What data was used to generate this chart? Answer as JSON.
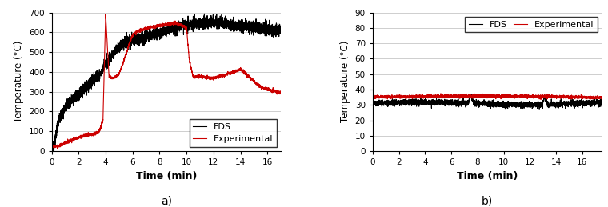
{
  "panel_a": {
    "xlabel": "Time (min)",
    "ylabel": "Temperature (°C)",
    "xlim": [
      0,
      17
    ],
    "ylim": [
      0,
      700
    ],
    "yticks": [
      0,
      100,
      200,
      300,
      400,
      500,
      600,
      700
    ],
    "xticks": [
      0,
      2,
      4,
      6,
      8,
      10,
      12,
      14,
      16
    ],
    "label": "a)",
    "exp_color": "#cc0000",
    "fds_color": "#000000",
    "exp_label": "Experimental",
    "fds_label": "FDS"
  },
  "panel_b": {
    "xlabel": "Time (min)",
    "ylabel": "Temperature (°C)",
    "xlim": [
      0,
      17.5
    ],
    "ylim": [
      0,
      90
    ],
    "yticks": [
      0,
      10,
      20,
      30,
      40,
      50,
      60,
      70,
      80,
      90
    ],
    "xticks": [
      0,
      2,
      4,
      6,
      8,
      10,
      12,
      14,
      16
    ],
    "label": "b)",
    "exp_color": "#cc0000",
    "fds_color": "#000000",
    "exp_label": "Experimental",
    "fds_label": "FDS"
  },
  "linewidth": 0.8,
  "tick_labelsize": 7.5,
  "axis_labelsize": 8.5,
  "legend_fontsize": 8,
  "xlabel_fontsize": 9,
  "xlabel_fontweight": "bold",
  "grid_color": "#bbbbbb",
  "grid_lw": 0.5
}
